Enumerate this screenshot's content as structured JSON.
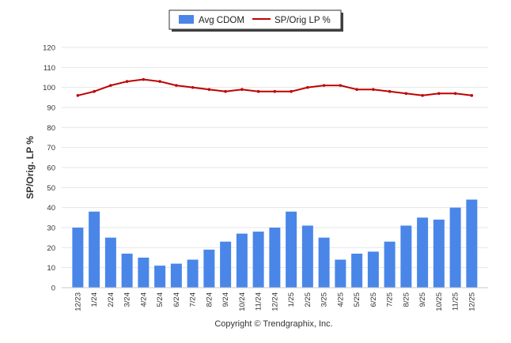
{
  "chart_data": {
    "type": "bar+line",
    "categories": [
      "12/23",
      "1/24",
      "2/24",
      "3/24",
      "4/24",
      "5/24",
      "6/24",
      "7/24",
      "8/24",
      "9/24",
      "10/24",
      "11/24",
      "12/24",
      "1/25",
      "2/25",
      "3/25",
      "4/25",
      "5/25",
      "6/25",
      "7/25",
      "8/25",
      "9/25",
      "10/25",
      "11/25",
      "12/25"
    ],
    "series": [
      {
        "name": "Avg CDOM",
        "kind": "bar",
        "color": "#4a86e8",
        "values": [
          30,
          38,
          25,
          17,
          15,
          11,
          12,
          14,
          19,
          23,
          27,
          28,
          30,
          38,
          31,
          25,
          14,
          17,
          18,
          23,
          31,
          35,
          34,
          40,
          44
        ]
      },
      {
        "name": "SP/Orig LP %",
        "kind": "line",
        "color": "#c00000",
        "values": [
          96,
          98,
          101,
          103,
          104,
          103,
          101,
          100,
          99,
          98,
          99,
          98,
          98,
          98,
          100,
          101,
          101,
          99,
          99,
          98,
          97,
          96,
          97,
          97,
          96
        ]
      }
    ],
    "ylabel": "SP/Orig. LP %",
    "ylim": [
      0,
      120
    ],
    "yticks": [
      0,
      10,
      20,
      30,
      40,
      50,
      60,
      70,
      80,
      90,
      100,
      110,
      120
    ],
    "grid": true,
    "legend": "top-center"
  },
  "footer": {
    "copyright": "Copyright © Trendgraphix, Inc."
  }
}
